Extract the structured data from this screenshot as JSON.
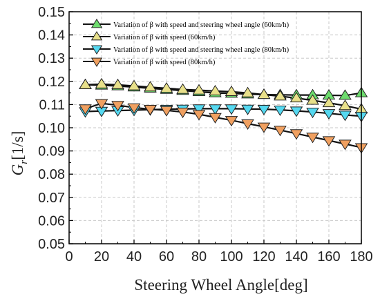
{
  "chart_data": {
    "type": "line",
    "xlabel": "Steering Wheel Angle[deg]",
    "ylabel_main": "G",
    "ylabel_sub": "r",
    "ylabel_unit": "[1/s]",
    "xlim": [
      0,
      180
    ],
    "ylim": [
      0.05,
      0.15
    ],
    "xticks": [
      0,
      20,
      40,
      60,
      80,
      100,
      120,
      140,
      160,
      180
    ],
    "yticks": [
      0.05,
      0.06,
      0.07,
      0.08,
      0.09,
      0.1,
      0.11,
      0.12,
      0.13,
      0.14,
      0.15
    ],
    "ytick_labels": [
      "0.05",
      "0.06",
      "0.07",
      "0.08",
      "0.09",
      "0.10",
      "0.11",
      "0.12",
      "0.13",
      "0.14",
      "0.15"
    ],
    "grid": true,
    "legend_position": "top",
    "x": [
      10,
      20,
      30,
      40,
      50,
      60,
      70,
      80,
      90,
      100,
      110,
      120,
      130,
      140,
      150,
      160,
      170,
      180
    ],
    "series": [
      {
        "name": "Variation of β with speed and steering wheel angle (60km/h)",
        "marker": "triangle-up",
        "color": "#6ddc6d",
        "values": [
          0.1185,
          0.1183,
          0.118,
          0.1175,
          0.117,
          0.1165,
          0.116,
          0.1155,
          0.115,
          0.1148,
          0.1145,
          0.1143,
          0.1142,
          0.1141,
          0.1141,
          0.114,
          0.1139,
          0.115
        ]
      },
      {
        "name": "Variation of β with speed (60km/h)",
        "marker": "triangle-up",
        "color": "#e8e08a",
        "values": [
          0.1185,
          0.1188,
          0.1185,
          0.118,
          0.1175,
          0.117,
          0.1165,
          0.1162,
          0.1158,
          0.1155,
          0.115,
          0.1143,
          0.1136,
          0.1128,
          0.1118,
          0.1107,
          0.1095,
          0.108
        ]
      },
      {
        "name": "Variation of β with speed and steering wheel angle (80km/h)",
        "marker": "triangle-down",
        "color": "#55d8f0",
        "values": [
          0.107,
          0.1072,
          0.1074,
          0.1076,
          0.1078,
          0.108,
          0.1081,
          0.1082,
          0.1082,
          0.1082,
          0.1081,
          0.108,
          0.1077,
          0.1073,
          0.1068,
          0.1062,
          0.1055,
          0.105
        ]
      },
      {
        "name": "Variation of β with speed (80km/h)",
        "marker": "triangle-down",
        "color": "#f0a060",
        "values": [
          0.1082,
          0.1105,
          0.1097,
          0.1087,
          0.108,
          0.1075,
          0.1068,
          0.1058,
          0.1045,
          0.1032,
          0.1018,
          0.1004,
          0.099,
          0.0975,
          0.096,
          0.0945,
          0.093,
          0.0915
        ]
      }
    ]
  }
}
